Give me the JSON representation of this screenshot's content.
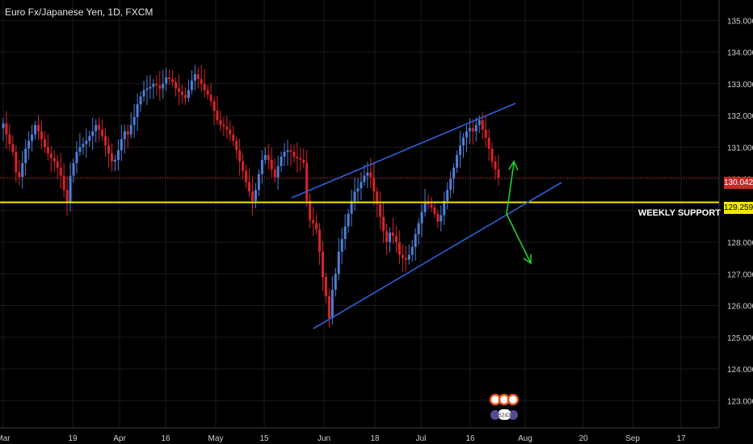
{
  "title": "Euro Fx/Japanese Yen, 1D, FXCM",
  "current_price_label": "130.042",
  "support_price_label": "129.259",
  "support_label": "WEEKLY SUPPORT",
  "logo_text": "5243",
  "colors": {
    "background": "#000000",
    "grid": "#1a1a1a",
    "bull": "#4f7fd6",
    "bear": "#d8232a",
    "support": "#f4e700",
    "channel": "#2f5fd8",
    "arrows": "#22d12c",
    "axis_text": "#cfcfcf"
  },
  "chart_data": {
    "type": "candlestick",
    "title": "Euro Fx/Japanese Yen, 1D, FXCM",
    "x_ticks": [
      "Mar",
      "19",
      "Apr",
      "16",
      "May",
      "15",
      "Jun",
      "18",
      "Jul",
      "16",
      "Aug",
      "20",
      "Sep",
      "17"
    ],
    "y_ticks": [
      "135.000",
      "134.000",
      "133.000",
      "132.000",
      "131.000",
      "130.000",
      "129.000",
      "128.000",
      "127.000",
      "126.000",
      "125.000",
      "124.000",
      "123.000"
    ],
    "ylim": [
      122.8,
      135.25
    ],
    "current_price": 130.042,
    "weekly_support": 129.259,
    "closes": [
      131.75,
      131.4,
      131.1,
      130.85,
      130.2,
      130.05,
      130.5,
      130.95,
      131.2,
      131.4,
      131.7,
      131.5,
      131.25,
      131.0,
      130.8,
      130.65,
      130.55,
      130.35,
      130.1,
      129.65,
      129.25,
      130.1,
      130.5,
      130.85,
      131.0,
      131.1,
      131.2,
      131.35,
      131.5,
      131.7,
      131.55,
      131.35,
      131.05,
      130.8,
      130.55,
      130.6,
      130.9,
      131.25,
      131.5,
      131.4,
      131.7,
      131.95,
      132.35,
      132.6,
      132.8,
      132.85,
      132.9,
      133.0,
      132.95,
      132.85,
      133.0,
      133.2,
      133.15,
      133.05,
      132.85,
      132.75,
      132.65,
      132.55,
      132.8,
      133.1,
      133.3,
      133.15,
      133.0,
      132.8,
      132.65,
      132.45,
      132.15,
      131.85,
      131.7,
      131.65,
      131.55,
      131.4,
      131.2,
      130.9,
      130.55,
      130.25,
      129.9,
      129.6,
      129.3,
      129.65,
      130.15,
      130.6,
      130.75,
      130.6,
      130.3,
      130.05,
      130.4,
      130.7,
      130.85,
      130.9,
      130.85,
      130.7,
      130.65,
      130.6,
      130.5,
      129.3,
      128.7,
      128.6,
      128.4,
      127.7,
      126.9,
      126.3,
      125.6,
      126.5,
      127.0,
      127.7,
      128.1,
      128.5,
      128.9,
      129.3,
      129.6,
      129.7,
      129.9,
      130.1,
      130.2,
      130.05,
      129.6,
      129.2,
      128.8,
      128.35,
      128.0,
      128.3,
      128.2,
      128.0,
      127.6,
      127.5,
      127.45,
      127.6,
      127.85,
      128.25,
      128.6,
      128.95,
      129.25,
      129.2,
      129.1,
      128.9,
      128.65,
      128.85,
      129.3,
      129.65,
      130.0,
      130.35,
      130.75,
      131.05,
      131.3,
      131.5,
      131.6,
      131.5,
      131.7,
      131.85,
      131.55,
      131.3,
      130.95,
      130.55,
      130.3,
      130.04
    ]
  }
}
